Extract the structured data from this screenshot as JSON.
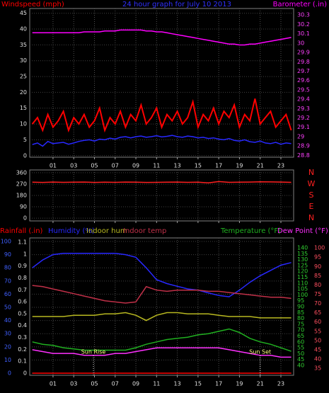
{
  "chart_data": [
    {
      "type": "line",
      "title": "24 hour graph for July 10 2013",
      "ylabel": "Windspeed (mph)",
      "y2label": "Barometer (.in)",
      "x": [
        -1,
        -0.5,
        0,
        0.5,
        1,
        1.5,
        2,
        2.5,
        3,
        3.5,
        4,
        4.5,
        5,
        5.5,
        6,
        6.5,
        7,
        7.5,
        8,
        8.5,
        9,
        9.5,
        10,
        10.5,
        11,
        11.5,
        12,
        12.5,
        13,
        13.5,
        14,
        14.5,
        15,
        15.5,
        16,
        16.5,
        17,
        17.5,
        18,
        18.5,
        19,
        19.5,
        20,
        20.5,
        21,
        21.5,
        22,
        22.5,
        23,
        23.5,
        24
      ],
      "xlim": [
        -1.25,
        24.23
      ],
      "xticks": [
        {
          "value": 1,
          "label": "01"
        },
        {
          "value": 3,
          "label": "03"
        },
        {
          "value": 5,
          "label": "05"
        },
        {
          "value": 7,
          "label": "07"
        },
        {
          "value": 9,
          "label": "09"
        },
        {
          "value": 11,
          "label": "11"
        },
        {
          "value": 13,
          "label": "13"
        },
        {
          "value": 15,
          "label": "15"
        },
        {
          "value": 17,
          "label": "17"
        },
        {
          "value": 19,
          "label": "19"
        },
        {
          "value": 21,
          "label": "21"
        },
        {
          "value": 23,
          "label": "23"
        }
      ],
      "ylim": [
        -0.5,
        46.5
      ],
      "yticks": [
        0,
        5,
        10,
        15,
        20,
        25,
        30,
        35,
        40,
        45
      ],
      "y2lim": [
        28.78,
        30.37
      ],
      "y2ticks": [
        28.8,
        28.9,
        29,
        29.1,
        29.2,
        29.3,
        29.4,
        29.5,
        29.6,
        29.7,
        29.8,
        29.9,
        30,
        30.1,
        30.2,
        30.3
      ],
      "grid": true,
      "series": [
        {
          "color": "#ff0000",
          "values": [
            10,
            12,
            8,
            13,
            9,
            11,
            14,
            8,
            12,
            10,
            13,
            9,
            11,
            15,
            8,
            12,
            10,
            14,
            9,
            13,
            11,
            16,
            10,
            12,
            15,
            9,
            13,
            11,
            14,
            10,
            12,
            17,
            9,
            13,
            11,
            15,
            10,
            14,
            12,
            16,
            9,
            13,
            11,
            18,
            10,
            12,
            14,
            9,
            11,
            13,
            8
          ]
        },
        {
          "color": "#2828ff",
          "values": [
            3.5,
            4,
            3,
            4.5,
            3.8,
            4,
            4.2,
            3.6,
            4,
            4.5,
            4.8,
            5,
            4.6,
            5.2,
            5,
            5.5,
            5.2,
            5.8,
            6,
            5.6,
            6,
            6.2,
            5.8,
            6,
            6.3,
            5.9,
            6.1,
            6.4,
            6,
            5.8,
            6.2,
            6,
            5.6,
            5.8,
            5.4,
            5.6,
            5.2,
            5,
            5.4,
            4.8,
            4.6,
            5,
            4.4,
            4.2,
            4.6,
            4,
            3.8,
            4.2,
            3.6,
            4,
            3.8
          ]
        },
        {
          "color": "#ff00ff",
          "axis": "y2",
          "values": [
            30.11,
            30.11,
            30.11,
            30.11,
            30.11,
            30.11,
            30.11,
            30.11,
            30.11,
            30.11,
            30.12,
            30.12,
            30.12,
            30.12,
            30.13,
            30.13,
            30.13,
            30.14,
            30.14,
            30.14,
            30.14,
            30.14,
            30.13,
            30.13,
            30.12,
            30.12,
            30.11,
            30.1,
            30.09,
            30.08,
            30.07,
            30.06,
            30.05,
            30.04,
            30.03,
            30.02,
            30.01,
            30,
            29.99,
            29.99,
            29.98,
            29.98,
            29.99,
            29.99,
            30,
            30.01,
            30.02,
            30.03,
            30.04,
            30.05,
            30.06
          ]
        }
      ]
    },
    {
      "type": "line",
      "x": [
        -1,
        0,
        1,
        2,
        3,
        4,
        5,
        6,
        7,
        8,
        9,
        10,
        11,
        12,
        13,
        14,
        15,
        16,
        17,
        18,
        19,
        20,
        21,
        22,
        23,
        24
      ],
      "xlim": [
        -1.25,
        24.23
      ],
      "xticks": [
        1,
        3,
        5,
        7,
        9,
        11,
        13,
        15,
        17,
        19,
        21,
        23
      ],
      "ylim": [
        -22,
        382
      ],
      "yticks": [
        0,
        90,
        180,
        270,
        360
      ],
      "y2lim": [
        -22,
        382
      ],
      "y2ticks": [
        {
          "value": 360,
          "label": "N"
        },
        {
          "value": 270,
          "label": "W"
        },
        {
          "value": 180,
          "label": "S"
        },
        {
          "value": 90,
          "label": "E"
        },
        {
          "value": 0,
          "label": "N"
        }
      ],
      "grid": true,
      "series": [
        {
          "color": "#ff2020",
          "values": [
            285,
            283,
            286,
            284,
            285,
            286,
            283,
            285,
            284,
            286,
            285,
            283,
            284,
            285,
            286,
            284,
            285,
            280,
            290,
            284,
            285,
            286,
            288,
            287,
            286,
            284
          ]
        }
      ]
    },
    {
      "type": "line",
      "x": [
        -1,
        0,
        1,
        2,
        3,
        4,
        5,
        6,
        7,
        8,
        9,
        10,
        11,
        12,
        13,
        14,
        15,
        16,
        17,
        18,
        19,
        20,
        21,
        22,
        23,
        24
      ],
      "xlim": [
        -1.25,
        24.23
      ],
      "xticks": [
        {
          "value": 1,
          "label": "01"
        },
        {
          "value": 3,
          "label": "03"
        },
        {
          "value": 5,
          "label": "05"
        },
        {
          "value": 7,
          "label": "07"
        },
        {
          "value": 9,
          "label": "09"
        },
        {
          "value": 11,
          "label": "11"
        },
        {
          "value": 13,
          "label": "13"
        },
        {
          "value": 15,
          "label": "15"
        },
        {
          "value": 17,
          "label": "17"
        },
        {
          "value": 19,
          "label": "19"
        },
        {
          "value": 21,
          "label": "21"
        },
        {
          "value": 23,
          "label": "23"
        }
      ],
      "ylim": [
        -1.6,
        102.7
      ],
      "yticks": [
        0,
        10,
        20,
        30,
        40,
        50,
        60,
        70,
        80,
        90,
        100
      ],
      "y2lim": [
        31.6,
        148.4
      ],
      "y2ticks": [
        40,
        45,
        50,
        55,
        60,
        65,
        70,
        75,
        80,
        85,
        90,
        95,
        100,
        105,
        110,
        115,
        120,
        125,
        130,
        135,
        140
      ],
      "y3lim": [
        31.2,
        105.4
      ],
      "y3ticks": [
        35,
        40,
        45,
        50,
        55,
        60,
        65,
        70,
        75,
        80,
        85,
        90,
        95,
        100
      ],
      "y4lim": [
        -0.018,
        1.136
      ],
      "y4ticks": [
        0,
        0.1,
        0.2,
        0.3,
        0.4,
        0.5,
        0.6,
        0.7,
        0.8,
        0.9,
        1,
        1.1
      ],
      "grid": true,
      "annotations": [
        {
          "text": "Sun Rise",
          "x": 4.9
        },
        {
          "text": "Sun Set",
          "x": 21
        }
      ],
      "series": [
        {
          "name": "Rainfall (.in)",
          "color": "#ff0000",
          "axis": "y4",
          "values": [
            0,
            0,
            0,
            0,
            0,
            0,
            0,
            0,
            0,
            0,
            0,
            0,
            0,
            0,
            0,
            0,
            0,
            0,
            0,
            0,
            0,
            0,
            0,
            0,
            0,
            0
          ]
        },
        {
          "name": "Humidity (%)",
          "color": "#2828ff",
          "values": [
            80,
            86,
            90,
            91,
            91,
            91,
            91,
            91,
            91,
            90,
            88,
            80,
            71,
            68,
            66,
            64,
            63,
            61,
            59,
            58,
            63,
            69,
            74,
            78,
            82,
            84
          ]
        },
        {
          "name": "Indoor hum",
          "color": "#b8b820",
          "values": [
            43,
            43,
            43,
            43,
            44,
            44,
            44,
            45,
            45,
            46,
            44,
            40,
            44,
            46,
            46,
            45,
            45,
            45,
            44,
            43,
            43,
            43,
            42,
            42,
            42,
            42
          ]
        },
        {
          "name": "Indoor temp",
          "color": "#c03048",
          "axis": "y2",
          "values": [
            108,
            107,
            105,
            103,
            101,
            99,
            97,
            95,
            94,
            93,
            94,
            107,
            104,
            103,
            104,
            104,
            104,
            103,
            103,
            102,
            101,
            100,
            99,
            98,
            98,
            97
          ]
        },
        {
          "name": "Temperature (°F)",
          "color": "#20b020",
          "axis": "y2",
          "values": [
            60,
            58,
            57,
            55,
            54,
            53,
            53,
            53,
            53,
            53,
            55,
            58,
            60,
            62,
            63,
            64,
            66,
            67,
            69,
            71,
            68,
            63,
            60,
            58,
            55,
            52
          ]
        },
        {
          "name": "Dew Point (°F)",
          "color": "#ff30ff",
          "axis": "y3",
          "values": [
            45,
            44,
            43,
            43,
            43,
            42,
            42,
            42,
            43,
            43,
            44,
            45,
            46,
            46,
            46,
            46,
            46,
            46,
            46,
            45,
            44,
            43,
            42,
            42,
            41,
            41
          ]
        }
      ]
    }
  ]
}
